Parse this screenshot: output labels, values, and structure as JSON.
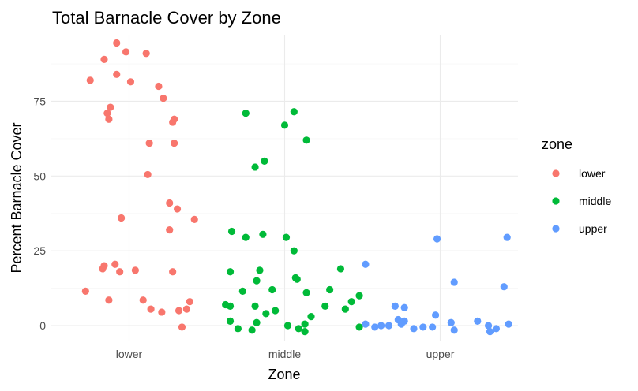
{
  "chart_data": {
    "type": "scatter",
    "title": "Total Barnacle Cover by Zone",
    "xlabel": "Zone",
    "ylabel": "Percent Barnacle Cover",
    "categories": [
      "lower",
      "middle",
      "upper"
    ],
    "ylim": [
      -5,
      97
    ],
    "yticks": [
      0,
      25,
      50,
      75
    ],
    "grid": true,
    "legend": {
      "title": "zone",
      "position": "right"
    },
    "colors": {
      "lower": "#F8766D",
      "middle": "#00BA38",
      "upper": "#619CFF"
    },
    "series": [
      {
        "name": "lower",
        "points": [
          {
            "x": -0.08,
            "y": 94.5
          },
          {
            "x": -0.16,
            "y": 89
          },
          {
            "x": -0.02,
            "y": 91.5
          },
          {
            "x": 0.11,
            "y": 91
          },
          {
            "x": -0.25,
            "y": 82
          },
          {
            "x": -0.08,
            "y": 84
          },
          {
            "x": 0.01,
            "y": 81.5
          },
          {
            "x": 0.19,
            "y": 80
          },
          {
            "x": 0.22,
            "y": 76
          },
          {
            "x": -0.12,
            "y": 73
          },
          {
            "x": -0.14,
            "y": 71
          },
          {
            "x": -0.13,
            "y": 69
          },
          {
            "x": 0.29,
            "y": 69
          },
          {
            "x": 0.28,
            "y": 68
          },
          {
            "x": 0.13,
            "y": 61
          },
          {
            "x": 0.29,
            "y": 61
          },
          {
            "x": 0.12,
            "y": 50.5
          },
          {
            "x": 0.26,
            "y": 41
          },
          {
            "x": 0.31,
            "y": 39
          },
          {
            "x": -0.05,
            "y": 36
          },
          {
            "x": 0.42,
            "y": 35.5
          },
          {
            "x": 0.26,
            "y": 32
          },
          {
            "x": -0.09,
            "y": 20.5
          },
          {
            "x": -0.16,
            "y": 20
          },
          {
            "x": -0.17,
            "y": 19
          },
          {
            "x": 0.04,
            "y": 18.5
          },
          {
            "x": -0.06,
            "y": 18
          },
          {
            "x": 0.28,
            "y": 18
          },
          {
            "x": -0.28,
            "y": 11.5
          },
          {
            "x": -0.13,
            "y": 8.5
          },
          {
            "x": 0.09,
            "y": 8.5
          },
          {
            "x": 0.39,
            "y": 8
          },
          {
            "x": 0.37,
            "y": 5.5
          },
          {
            "x": 0.32,
            "y": 5
          },
          {
            "x": 0.14,
            "y": 5.5
          },
          {
            "x": 0.21,
            "y": 4.5
          },
          {
            "x": 0.34,
            "y": -0.5
          }
        ]
      },
      {
        "name": "middle",
        "points": [
          {
            "x": -0.25,
            "y": 71
          },
          {
            "x": 0.06,
            "y": 71.5
          },
          {
            "x": 0.0,
            "y": 67
          },
          {
            "x": 0.14,
            "y": 62
          },
          {
            "x": -0.19,
            "y": 53
          },
          {
            "x": -0.13,
            "y": 55
          },
          {
            "x": -0.34,
            "y": 31.5
          },
          {
            "x": -0.14,
            "y": 30.5
          },
          {
            "x": -0.25,
            "y": 29.5
          },
          {
            "x": 0.01,
            "y": 29.5
          },
          {
            "x": 0.06,
            "y": 25
          },
          {
            "x": -0.35,
            "y": 18
          },
          {
            "x": -0.16,
            "y": 18.5
          },
          {
            "x": 0.07,
            "y": 16
          },
          {
            "x": 0.08,
            "y": 15.5
          },
          {
            "x": 0.36,
            "y": 19
          },
          {
            "x": -0.18,
            "y": 15
          },
          {
            "x": -0.27,
            "y": 11.5
          },
          {
            "x": -0.08,
            "y": 12
          },
          {
            "x": 0.14,
            "y": 11
          },
          {
            "x": 0.29,
            "y": 12
          },
          {
            "x": 0.48,
            "y": 10
          },
          {
            "x": 0.43,
            "y": 8
          },
          {
            "x": -0.38,
            "y": 7
          },
          {
            "x": -0.35,
            "y": 6.5
          },
          {
            "x": -0.19,
            "y": 6.5
          },
          {
            "x": 0.26,
            "y": 6.5
          },
          {
            "x": 0.39,
            "y": 5.5
          },
          {
            "x": -0.06,
            "y": 5
          },
          {
            "x": -0.12,
            "y": 4
          },
          {
            "x": 0.17,
            "y": 3
          },
          {
            "x": -0.35,
            "y": 1.5
          },
          {
            "x": -0.18,
            "y": 1
          },
          {
            "x": 0.02,
            "y": 0
          },
          {
            "x": 0.13,
            "y": 0.5
          },
          {
            "x": -0.3,
            "y": -1
          },
          {
            "x": -0.21,
            "y": -1.5
          },
          {
            "x": 0.09,
            "y": -1
          },
          {
            "x": 0.13,
            "y": -2
          },
          {
            "x": 0.48,
            "y": -0.5
          }
        ]
      },
      {
        "name": "upper",
        "points": [
          {
            "x": -0.02,
            "y": 29
          },
          {
            "x": 0.43,
            "y": 29.5
          },
          {
            "x": -0.48,
            "y": 20.5
          },
          {
            "x": 0.09,
            "y": 14.5
          },
          {
            "x": 0.41,
            "y": 13
          },
          {
            "x": -0.29,
            "y": 6.5
          },
          {
            "x": -0.23,
            "y": 6
          },
          {
            "x": -0.03,
            "y": 3.5
          },
          {
            "x": -0.27,
            "y": 2
          },
          {
            "x": -0.23,
            "y": 1.5
          },
          {
            "x": -0.25,
            "y": 0.5
          },
          {
            "x": -0.48,
            "y": 0.5
          },
          {
            "x": -0.42,
            "y": -0.5
          },
          {
            "x": -0.38,
            "y": 0
          },
          {
            "x": -0.33,
            "y": 0
          },
          {
            "x": -0.05,
            "y": -0.5
          },
          {
            "x": 0.07,
            "y": 1
          },
          {
            "x": 0.24,
            "y": 1.5
          },
          {
            "x": 0.31,
            "y": 0
          },
          {
            "x": 0.36,
            "y": -1
          },
          {
            "x": 0.09,
            "y": -1.5
          },
          {
            "x": -0.17,
            "y": -1
          },
          {
            "x": 0.44,
            "y": 0.5
          },
          {
            "x": 0.32,
            "y": -2
          },
          {
            "x": -0.11,
            "y": -0.5
          }
        ]
      }
    ]
  }
}
